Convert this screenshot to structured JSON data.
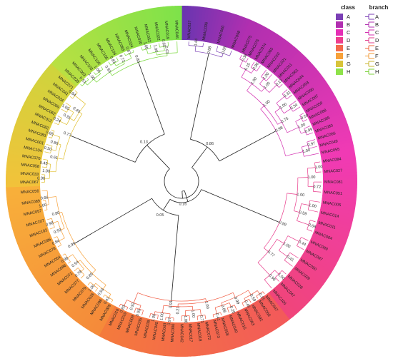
{
  "legend_class": {
    "title": "class",
    "items": [
      {
        "label": "A",
        "color": "#7b3fb5"
      },
      {
        "label": "B",
        "color": "#b12fb0"
      },
      {
        "label": "C",
        "color": "#e52fb5"
      },
      {
        "label": "D",
        "color": "#ee3e8e"
      },
      {
        "label": "E",
        "color": "#f36a4b"
      },
      {
        "label": "F",
        "color": "#f7a13a"
      },
      {
        "label": "G",
        "color": "#d8c43a"
      },
      {
        "label": "H",
        "color": "#8ee24a"
      }
    ]
  },
  "legend_branch": {
    "title": "branch",
    "items": [
      {
        "label": "A",
        "color": "#7b3fb5"
      },
      {
        "label": "B",
        "color": "#b12fb0"
      },
      {
        "label": "C",
        "color": "#d32fb0"
      },
      {
        "label": "D",
        "color": "#e23f8c"
      },
      {
        "label": "E",
        "color": "#ef6a3d"
      },
      {
        "label": "F",
        "color": "#f19a35"
      },
      {
        "label": "G",
        "color": "#c9b62f"
      },
      {
        "label": "H",
        "color": "#7cd13d"
      }
    ]
  },
  "tree": {
    "clades": [
      {
        "class": "A",
        "color": "#7b3fb5",
        "tips": [
          "MNAC037",
          "MNAC036",
          "MNAC060",
          "MNAC098"
        ],
        "supports": [
          "0.44",
          "0.89",
          "0.88"
        ]
      },
      {
        "class": "B",
        "color": "#d32fb0",
        "tips": [
          "MNAC075",
          "MNAC076",
          "MNAC074",
          "MNAC065",
          "MNAC010",
          "MNAC021",
          "MNAC011",
          "MNAC061",
          "MNAC044",
          "MNAC093",
          "MNAC090",
          "MNAC087",
          "MNAC059",
          "MNAC088",
          "MNAC085",
          "MNAC080",
          "MNAC066",
          "MNAC049",
          "MNAC055"
        ],
        "supports": [
          "0.38",
          "0.96",
          "1.00",
          "0.13",
          "0.31",
          "0.34",
          "0.50",
          "0.99",
          "0.97",
          "0.15",
          "1.00",
          "1.00",
          "1.00",
          "1.00",
          "1.00",
          "0.75",
          "1.00",
          "0.98",
          "0.99",
          "0.98",
          "0.14",
          "0.11",
          "0.91"
        ]
      },
      {
        "class": "C",
        "color": "#e83a8a",
        "tips": [
          "MNAC084",
          "MNAC027",
          "MNAC081",
          "MNAC051",
          "MNAC005",
          "MNAC014",
          "MNAC011",
          "MNAC004",
          "MNAC099",
          "MNAC097",
          "MNAC050",
          "MNAC029",
          "MNAC028",
          "MNAC047",
          "MNAC106"
        ],
        "supports": [
          "1.00",
          "0.72",
          "1.00",
          "0.68",
          "0.44",
          "0.41",
          "1.00",
          "1.00",
          "0.59",
          "1.00",
          "0.96",
          "1.00",
          "0.77",
          "0.99",
          "0.81",
          "0.98",
          "0.93"
        ]
      },
      {
        "class": "D",
        "color": "#f1563c",
        "tips": [
          "MNAC047",
          "MNAC068",
          "MNAC092",
          "MNAC063",
          "MNAC015",
          "MNAC040",
          "MNAC058",
          "MNAC073",
          "MNAC072",
          "MNAC018",
          "MNAC017",
          "MNAC042",
          "MNAC000",
          "MNAC043",
          "MNAC045",
          "MNAC038",
          "MNAC035",
          "MNAC009",
          "MNAC019",
          "MNAC010"
        ],
        "supports": [
          "0.15",
          "0.46",
          "0.25",
          "0.41",
          "0.71",
          "1.00",
          "0.97",
          "1.00",
          "0.55",
          "0.83",
          "0.59",
          "0.88",
          "1.00",
          "1.00",
          "0.92",
          "0.99",
          "0.21",
          "1.00",
          "0.91",
          "0.08"
        ]
      },
      {
        "class": "E",
        "color": "#f7a13a",
        "tips": [
          "MNAC009",
          "MNAC096",
          "MNAC026",
          "MNAC079",
          "MNAC077",
          "MNAC071",
          "MNAC086",
          "MNAC054",
          "MNAC078",
          "MNAC086",
          "MNAC102",
          "MNAC107",
          "MNAC057",
          "MNAC089",
          "MNAC056"
        ],
        "supports": [
          "0.41",
          "1.00",
          "0.78",
          "0.99",
          "0.84",
          "0.98",
          "1.00",
          "0.93",
          "0.54",
          "0.59",
          "0.66",
          "0.89",
          "0.80",
          "0.99",
          "0.61",
          "0.93",
          "0.96",
          "0.99",
          "1.00",
          "0.99",
          "0.10"
        ]
      },
      {
        "class": "F",
        "color": "#e0bf2e",
        "tips": [
          "MNAC067",
          "MNAC033",
          "MNAC058",
          "MNAC070",
          "MNAC104",
          "MNAC001",
          "MNAC083",
          "MNAC082",
          "MNAC012",
          "MNAC062",
          "MNAC069",
          "MNAC034",
          "MNAC041",
          "MNAC071"
        ],
        "supports": [
          "0.96",
          "0.45",
          "0.30",
          "0.65",
          "0.24",
          "1.00",
          "0.84",
          "1.00",
          "0.86",
          "0.31",
          "0.61",
          "0.40",
          "0.77"
        ]
      },
      {
        "class": "G",
        "color": "#78d83a",
        "tips": [
          "MNAC028",
          "MNAC003",
          "MNAC103",
          "MNAC100",
          "MNAC105",
          "MNAC106",
          "MNAC083",
          "MNAC024",
          "MNAC030",
          "MNAC052",
          "MNAC022",
          "MNAC019",
          "MNAC046"
        ],
        "supports": [
          "0.51",
          "1.00",
          "0.81",
          "0.67",
          "1.00",
          "0.65",
          "1.00",
          "0.72",
          "1.00",
          "0.93",
          "0.63",
          "0.86",
          "0.69",
          "0.06"
        ]
      }
    ],
    "root_supports": [
      "0.13",
      "0.16",
      "0.05",
      "0.86"
    ]
  }
}
